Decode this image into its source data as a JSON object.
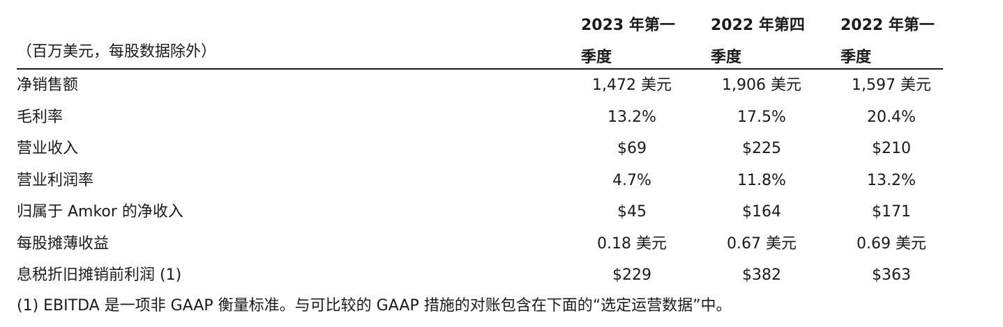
{
  "table": {
    "unit_note": "（百万美元，每股数据除外）",
    "columns": [
      {
        "line1": "2023 年第一",
        "line2": "季度"
      },
      {
        "line1": "2022 年第四",
        "line2": "季度"
      },
      {
        "line1": "2022 年第一",
        "line2": "季度"
      }
    ],
    "rows": [
      {
        "label": "净销售额",
        "values": [
          "1,472 美元",
          "1,906 美元",
          "1,597 美元"
        ]
      },
      {
        "label": "毛利率",
        "values": [
          "13.2%",
          "17.5%",
          "20.4%"
        ]
      },
      {
        "label": "营业收入",
        "values": [
          "$69",
          "$225",
          "$210"
        ]
      },
      {
        "label": "营业利润率",
        "values": [
          "4.7%",
          "11.8%",
          "13.2%"
        ]
      },
      {
        "label": "归属于 Amkor 的净收入",
        "values": [
          "$45",
          "$164",
          "$171"
        ]
      },
      {
        "label": "每股摊薄收益",
        "values": [
          "0.18 美元",
          "0.67 美元",
          "0.69 美元"
        ]
      },
      {
        "label": "息税折旧摊销前利润 (1)",
        "values": [
          "$229",
          "$382",
          "$363"
        ]
      }
    ]
  },
  "footnote": "(1) EBITDA 是一项非 GAAP 衡量标准。与可比较的 GAAP 措施的对账包含在下面的“选定运营数据”中。"
}
